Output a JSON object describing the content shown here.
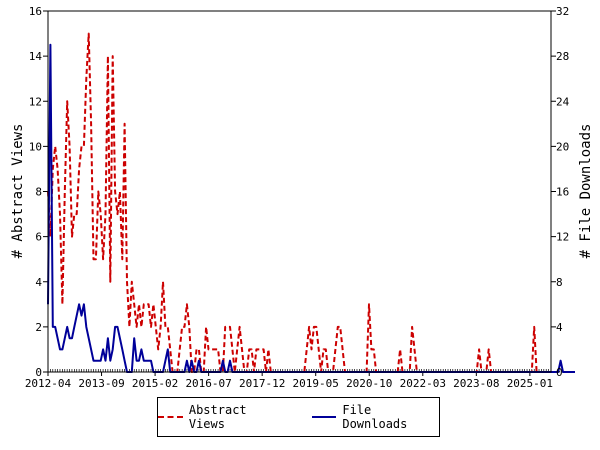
{
  "chart_data": {
    "type": "line",
    "title": "",
    "xlabel": "",
    "ylabel": "# Abstract Views",
    "y2label": "# File Downloads",
    "ylim": [
      0,
      16
    ],
    "y2lim": [
      0,
      32
    ],
    "yticks": [
      0,
      2,
      4,
      6,
      8,
      10,
      12,
      14,
      16
    ],
    "y2ticks": [
      0,
      4,
      8,
      12,
      16,
      20,
      24,
      28,
      32
    ],
    "x_tick_labels": [
      "2012-04",
      "2013-09",
      "2015-02",
      "2016-07",
      "2017-12",
      "2019-05",
      "2020-10",
      "2022-03",
      "2023-08",
      "2025-01"
    ],
    "legend_position": "bottom",
    "series": [
      {
        "name": "Abstract Views",
        "axis": "left",
        "color": "#cc0000",
        "style": "dashed",
        "values": [
          8,
          6,
          9,
          10,
          9,
          7,
          3,
          8,
          12,
          10,
          6,
          7,
          7,
          9,
          10,
          10,
          13,
          15,
          11,
          5,
          5,
          8,
          7,
          5,
          7,
          14,
          4,
          14,
          8,
          7,
          8,
          5,
          11,
          4,
          2,
          4,
          3,
          2,
          3,
          2,
          3,
          3,
          3,
          2,
          3,
          2,
          1,
          2,
          4,
          2,
          2,
          1,
          0,
          0,
          0,
          1,
          2,
          2,
          3,
          2,
          0,
          0,
          1,
          1,
          0,
          0,
          2,
          1,
          1,
          1,
          1,
          1,
          0,
          0,
          2,
          2,
          2,
          1,
          0,
          1,
          2,
          1,
          0,
          0,
          1,
          1,
          0,
          1,
          1,
          1,
          1,
          0,
          1,
          0,
          0,
          0,
          0,
          0,
          0,
          0,
          0,
          0,
          0,
          0,
          0,
          0,
          0,
          0,
          1,
          2,
          1,
          2,
          2,
          1,
          0,
          1,
          1,
          0,
          0,
          0,
          1,
          2,
          2,
          1,
          0,
          0,
          0,
          0,
          0,
          0,
          0,
          0,
          0,
          0,
          3,
          1,
          1,
          0,
          0,
          0,
          0,
          0,
          0,
          0,
          0,
          0,
          0,
          1,
          0,
          0,
          0,
          0,
          2,
          1,
          0,
          0,
          0,
          0,
          0,
          0,
          0,
          0,
          0,
          0,
          0,
          0,
          0,
          0,
          0,
          0,
          0,
          0,
          0,
          0,
          0,
          0,
          0,
          0,
          0,
          0,
          1,
          0,
          0,
          0,
          1,
          0,
          0,
          0,
          0,
          0,
          0,
          0,
          0,
          0,
          0,
          0,
          0,
          0,
          0,
          0,
          0,
          0,
          0,
          2,
          0,
          0,
          0,
          0,
          0,
          0,
          0
        ]
      },
      {
        "name": "File Downloads",
        "axis": "right",
        "color": "#000099",
        "style": "solid",
        "values": [
          6,
          29,
          4,
          4,
          3,
          2,
          2,
          3,
          4,
          3,
          3,
          4,
          5,
          6,
          5,
          6,
          4,
          3,
          2,
          1,
          1,
          1,
          1,
          2,
          1,
          3,
          1,
          2,
          4,
          4,
          3,
          2,
          1,
          0,
          0,
          0,
          3,
          1,
          1,
          2,
          1,
          1,
          1,
          1,
          0,
          0,
          0,
          0,
          0,
          1,
          2,
          0,
          0,
          0,
          0,
          0,
          0,
          0,
          1,
          0,
          1,
          0,
          0,
          1,
          0,
          0,
          0,
          0,
          0,
          0,
          0,
          0,
          0,
          1,
          0,
          0,
          1,
          0,
          0,
          0,
          0,
          0,
          0,
          0,
          0,
          0,
          0,
          0,
          0,
          0,
          0,
          0,
          0,
          0,
          0,
          0,
          0,
          0,
          0,
          0,
          0,
          0,
          0,
          0,
          0,
          0,
          0,
          0,
          0,
          0,
          0,
          0,
          0,
          0,
          0,
          0,
          0,
          0,
          0,
          0,
          0,
          0,
          0,
          0,
          0,
          0,
          0,
          0,
          0,
          0,
          0,
          0,
          0,
          0,
          0,
          0,
          0,
          0,
          0,
          0,
          0,
          0,
          0,
          0,
          0,
          0,
          0,
          0,
          0,
          0,
          0,
          0,
          0,
          0,
          0,
          0,
          0,
          0,
          0,
          0,
          0,
          0,
          0,
          0,
          0,
          0,
          0,
          0,
          0,
          0,
          0,
          0,
          0,
          0,
          0,
          0,
          0,
          0,
          0,
          0,
          0,
          0,
          0,
          0,
          0,
          0,
          0,
          0,
          0,
          0,
          0,
          0,
          0,
          0,
          0,
          0,
          0,
          0,
          0,
          0,
          0,
          0,
          0,
          0,
          0,
          0,
          0,
          0,
          0,
          0,
          0,
          0,
          0,
          0,
          1,
          0,
          0,
          0,
          0,
          0,
          0
        ]
      }
    ]
  }
}
